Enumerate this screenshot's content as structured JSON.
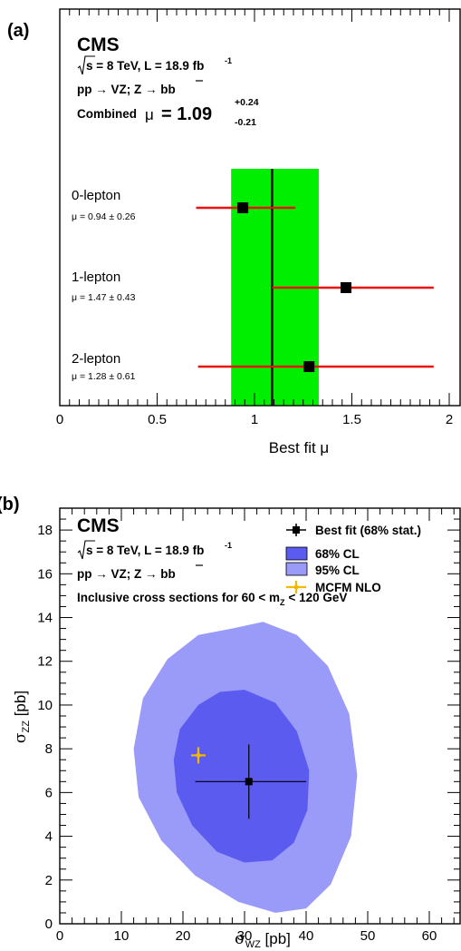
{
  "panel_a": {
    "label": "(a)",
    "cms": "CMS",
    "energy_text": "s = 8 TeV, L = 18.9 fb",
    "energy_sup": "-1",
    "process_text": "pp → VZ; Z → bb",
    "combined_prefix": "Combined",
    "mu_symbol": "μ",
    "equals_value": "= 1.09",
    "err_up": "+0.24",
    "err_down": "-0.21"
  },
  "panel_b": {
    "label": "(b)",
    "cms": "CMS",
    "energy_text": "s = 8 TeV, L = 18.9 fb",
    "energy_sup": "-1",
    "process_text": "pp → VZ; Z → bb",
    "inclusive_prefix": "Inclusive cross sections for 60 < m",
    "inclusive_sub": "Z",
    "inclusive_suffix": "< 120 GeV",
    "legend": {
      "best_fit": "Best fit (68% stat.)",
      "cl68": "68% CL",
      "cl95": "95% CL",
      "mcfm": "MCFM NLO"
    }
  },
  "colors": {
    "green_band": "#00ee00",
    "red_bar": "#ee1111",
    "cl68": "#5b5bf0",
    "cl95": "#9a9af8",
    "mcfm": "#f5b800"
  },
  "chart_data": [
    {
      "type": "scatter",
      "xlabel": "Best fit μ",
      "xlim": [
        0,
        2
      ],
      "xticks": [
        "0",
        "0.5",
        "1",
        "1.5",
        "2"
      ],
      "combined": {
        "value": 1.09,
        "err_up": 0.24,
        "err_down": 0.21
      },
      "points": [
        {
          "name": "0-lepton",
          "label": "μ = 0.94 ± 0.26",
          "value": 0.94,
          "lo": 0.7,
          "hi": 1.21
        },
        {
          "name": "1-lepton",
          "label": "μ =  1.47 ± 0.43",
          "value": 1.47,
          "lo": 1.09,
          "hi": 1.92
        },
        {
          "name": "2-lepton",
          "label": "μ = 1.28 ± 0.61",
          "value": 1.28,
          "lo": 0.71,
          "hi": 1.92
        }
      ]
    },
    {
      "type": "scatter",
      "xlabel": "σ_WZ [pb]",
      "ylabel": "σ_ZZ [pb]",
      "xlim": [
        0,
        65
      ],
      "ylim": [
        0,
        19
      ],
      "xticks": [
        "0",
        "10",
        "20",
        "30",
        "40",
        "50",
        "60"
      ],
      "yticks": [
        "0",
        "2",
        "4",
        "6",
        "8",
        "10",
        "12",
        "14",
        "16",
        "18"
      ],
      "best_fit": {
        "x": 30.7,
        "y": 6.5,
        "x_lo": 22.0,
        "x_hi": 40.0,
        "y_lo": 4.8,
        "y_hi": 8.2
      },
      "mcfm": {
        "x": 22.5,
        "y": 7.7
      },
      "contour_68": [
        [
          30.0,
          10.7
        ],
        [
          35.0,
          10.1
        ],
        [
          38.5,
          8.8
        ],
        [
          40.5,
          7.0
        ],
        [
          40.2,
          5.2
        ],
        [
          38.0,
          3.7
        ],
        [
          34.5,
          2.9
        ],
        [
          30.0,
          2.8
        ],
        [
          25.5,
          3.3
        ],
        [
          21.5,
          4.5
        ],
        [
          19.0,
          6.0
        ],
        [
          18.5,
          7.5
        ],
        [
          19.5,
          8.9
        ],
        [
          22.5,
          10.0
        ],
        [
          26.0,
          10.6
        ]
      ],
      "contour_95": [
        [
          28.0,
          13.5
        ],
        [
          33.0,
          13.8
        ],
        [
          38.5,
          13.2
        ],
        [
          43.5,
          11.8
        ],
        [
          47.0,
          9.6
        ],
        [
          48.3,
          6.8
        ],
        [
          47.3,
          4.0
        ],
        [
          44.0,
          1.8
        ],
        [
          40.0,
          0.7
        ],
        [
          35.0,
          0.5
        ],
        [
          29.0,
          1.0
        ],
        [
          22.0,
          2.2
        ],
        [
          16.5,
          3.8
        ],
        [
          12.8,
          5.8
        ],
        [
          12.0,
          8.0
        ],
        [
          13.5,
          10.3
        ],
        [
          17.5,
          12.1
        ],
        [
          22.5,
          13.2
        ]
      ]
    }
  ]
}
